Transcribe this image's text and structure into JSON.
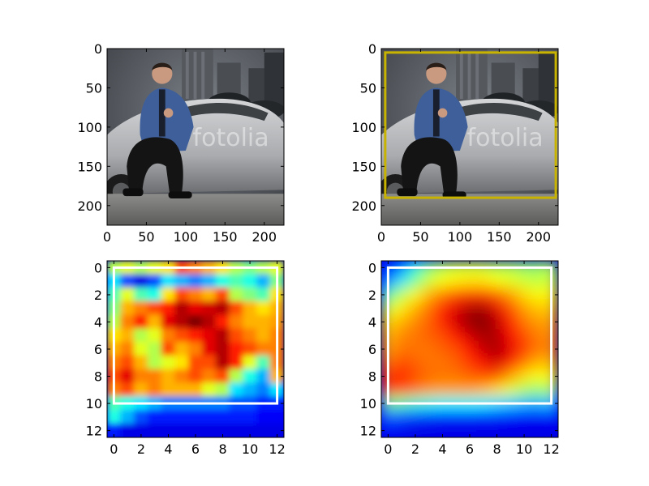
{
  "chart_data": [
    {
      "type": "image",
      "xticks": [
        0,
        50,
        100,
        150,
        200
      ],
      "yticks": [
        0,
        50,
        100,
        150,
        200
      ],
      "xlim": [
        0,
        225
      ],
      "ylim": [
        225,
        0
      ],
      "image_content": "photo",
      "watermark": "fotolia",
      "box": null
    },
    {
      "type": "image",
      "xticks": [
        0,
        50,
        100,
        150,
        200
      ],
      "yticks": [
        0,
        50,
        100,
        150,
        200
      ],
      "xlim": [
        0,
        225
      ],
      "ylim": [
        225,
        0
      ],
      "image_content": "photo",
      "watermark": "fotolia",
      "box": {
        "x0": 5,
        "y0": 5,
        "x1": 222,
        "y1": 190,
        "color": "#c8b400"
      }
    },
    {
      "type": "heatmap",
      "colormap": "jet",
      "interpolation": "smooth",
      "xticks": [
        0,
        2,
        4,
        6,
        8,
        10,
        12
      ],
      "yticks": [
        0,
        2,
        4,
        6,
        8,
        10,
        12
      ],
      "xlim": [
        -0.5,
        12.5
      ],
      "ylim": [
        12.5,
        -0.5
      ],
      "values": [
        [
          0.55,
          0.6,
          0.55,
          0.6,
          0.65,
          0.8,
          0.75,
          0.7,
          0.65,
          0.55,
          0.5,
          0.55,
          0.6
        ],
        [
          0.35,
          0.2,
          0.1,
          0.2,
          0.35,
          0.3,
          0.25,
          0.3,
          0.4,
          0.45,
          0.4,
          0.3,
          0.5
        ],
        [
          0.45,
          0.6,
          0.45,
          0.4,
          0.65,
          0.8,
          0.75,
          0.7,
          0.8,
          0.55,
          0.5,
          0.45,
          0.65
        ],
        [
          0.5,
          0.7,
          0.75,
          0.8,
          0.85,
          0.95,
          0.9,
          0.92,
          0.95,
          0.8,
          0.7,
          0.65,
          0.7
        ],
        [
          0.55,
          0.75,
          0.85,
          0.7,
          0.9,
          0.95,
          1.0,
          0.95,
          0.85,
          0.75,
          0.7,
          0.7,
          0.72
        ],
        [
          0.65,
          0.7,
          0.55,
          0.6,
          0.75,
          0.8,
          0.85,
          0.9,
          0.95,
          0.8,
          0.75,
          0.7,
          0.75
        ],
        [
          0.7,
          0.75,
          0.6,
          0.55,
          0.8,
          0.7,
          0.75,
          0.9,
          0.95,
          0.85,
          0.8,
          0.75,
          0.75
        ],
        [
          0.75,
          0.8,
          0.7,
          0.55,
          0.6,
          0.65,
          0.8,
          0.8,
          0.95,
          0.85,
          0.6,
          0.45,
          0.75
        ],
        [
          0.8,
          0.9,
          0.75,
          0.75,
          0.7,
          0.75,
          0.8,
          0.75,
          0.8,
          0.55,
          0.4,
          0.3,
          0.7
        ],
        [
          0.75,
          0.8,
          0.7,
          0.75,
          0.7,
          0.7,
          0.7,
          0.6,
          0.55,
          0.35,
          0.3,
          0.25,
          0.35
        ],
        [
          0.45,
          0.4,
          0.35,
          0.3,
          0.25,
          0.25,
          0.25,
          0.25,
          0.25,
          0.2,
          0.2,
          0.15,
          0.15
        ],
        [
          0.4,
          0.3,
          0.2,
          0.15,
          0.15,
          0.15,
          0.15,
          0.15,
          0.15,
          0.15,
          0.15,
          0.12,
          0.12
        ],
        [
          0.15,
          0.1,
          0.1,
          0.1,
          0.1,
          0.1,
          0.1,
          0.1,
          0.1,
          0.1,
          0.1,
          0.1,
          0.1
        ]
      ],
      "box": {
        "x0": 0,
        "y0": 0,
        "x1": 12,
        "y1": 10,
        "color": "#ffffff"
      }
    },
    {
      "type": "heatmap",
      "colormap": "jet",
      "interpolation": "smooth",
      "xticks": [
        0,
        2,
        4,
        6,
        8,
        10,
        12
      ],
      "yticks": [
        0,
        2,
        4,
        6,
        8,
        10,
        12
      ],
      "xlim": [
        -0.5,
        12.5
      ],
      "ylim": [
        12.5,
        -0.5
      ],
      "values": [
        [
          0.15,
          0.25,
          0.4,
          0.5,
          0.55,
          0.58,
          0.58,
          0.58,
          0.55,
          0.55,
          0.52,
          0.52,
          0.55
        ],
        [
          0.25,
          0.35,
          0.48,
          0.58,
          0.62,
          0.64,
          0.65,
          0.65,
          0.62,
          0.6,
          0.58,
          0.56,
          0.58
        ],
        [
          0.45,
          0.55,
          0.62,
          0.7,
          0.75,
          0.8,
          0.82,
          0.82,
          0.78,
          0.72,
          0.66,
          0.62,
          0.64
        ],
        [
          0.58,
          0.64,
          0.7,
          0.76,
          0.84,
          0.9,
          0.95,
          0.96,
          0.9,
          0.8,
          0.72,
          0.68,
          0.68
        ],
        [
          0.66,
          0.7,
          0.74,
          0.78,
          0.84,
          0.92,
          0.98,
          1.0,
          0.94,
          0.84,
          0.76,
          0.72,
          0.72
        ],
        [
          0.7,
          0.74,
          0.76,
          0.78,
          0.8,
          0.86,
          0.92,
          0.96,
          0.95,
          0.88,
          0.8,
          0.75,
          0.74
        ],
        [
          0.72,
          0.76,
          0.76,
          0.76,
          0.78,
          0.8,
          0.86,
          0.93,
          0.96,
          0.9,
          0.82,
          0.76,
          0.75
        ],
        [
          0.76,
          0.8,
          0.78,
          0.76,
          0.76,
          0.78,
          0.82,
          0.88,
          0.92,
          0.86,
          0.76,
          0.7,
          0.7
        ],
        [
          0.82,
          0.85,
          0.8,
          0.77,
          0.76,
          0.76,
          0.78,
          0.8,
          0.8,
          0.72,
          0.66,
          0.62,
          0.64
        ],
        [
          0.8,
          0.8,
          0.76,
          0.73,
          0.72,
          0.72,
          0.72,
          0.7,
          0.66,
          0.6,
          0.55,
          0.52,
          0.55
        ],
        [
          0.48,
          0.46,
          0.42,
          0.4,
          0.38,
          0.38,
          0.38,
          0.37,
          0.35,
          0.33,
          0.31,
          0.3,
          0.32
        ],
        [
          0.22,
          0.2,
          0.18,
          0.17,
          0.16,
          0.16,
          0.16,
          0.15,
          0.15,
          0.14,
          0.13,
          0.12,
          0.13
        ],
        [
          0.12,
          0.11,
          0.1,
          0.1,
          0.1,
          0.1,
          0.1,
          0.1,
          0.1,
          0.1,
          0.1,
          0.1,
          0.1
        ]
      ],
      "box": {
        "x0": 0,
        "y0": 0,
        "x1": 12,
        "y1": 10,
        "color": "#ffffff"
      }
    }
  ]
}
